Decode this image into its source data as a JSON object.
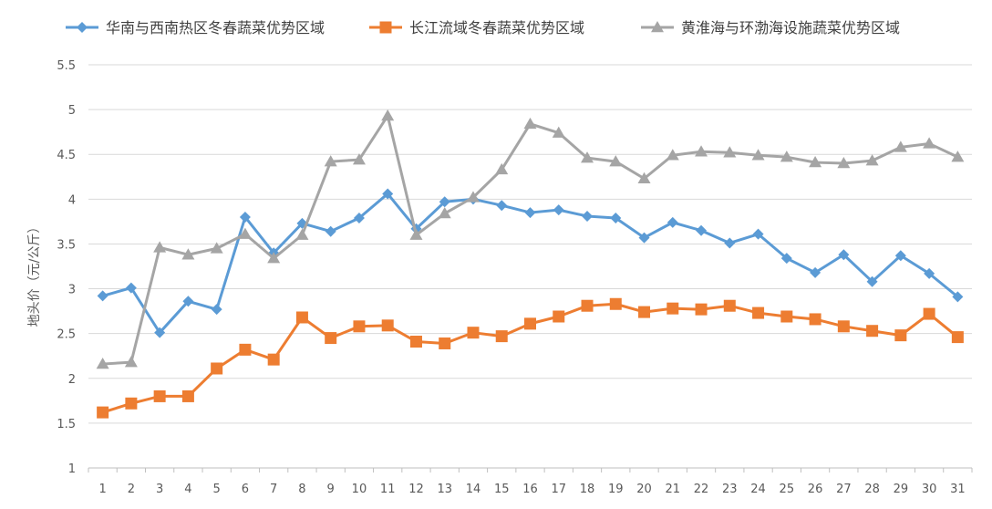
{
  "chart_data": {
    "type": "line",
    "xlabel": "",
    "ylabel": "地头价（元/公斤）",
    "ylim": [
      1,
      5.5
    ],
    "yticks": [
      1,
      1.5,
      2,
      2.5,
      3,
      3.5,
      4,
      4.5,
      5,
      5.5
    ],
    "grid": true,
    "legend": "top",
    "categories": [
      "1",
      "2",
      "3",
      "4",
      "5",
      "6",
      "7",
      "8",
      "9",
      "10",
      "11",
      "12",
      "13",
      "14",
      "15",
      "16",
      "17",
      "18",
      "19",
      "20",
      "21",
      "22",
      "23",
      "24",
      "25",
      "26",
      "27",
      "28",
      "29",
      "30",
      "31"
    ],
    "series": [
      {
        "name": "华南与西南热区冬春蔬菜优势区域",
        "color": "#5b9bd5",
        "marker": "diamond",
        "values": [
          2.92,
          3.01,
          2.51,
          2.86,
          2.77,
          3.8,
          3.4,
          3.73,
          3.64,
          3.79,
          4.06,
          3.67,
          3.97,
          4.0,
          3.93,
          3.85,
          3.88,
          3.81,
          3.79,
          3.57,
          3.74,
          3.65,
          3.51,
          3.61,
          3.34,
          3.18,
          3.38,
          3.08,
          3.37,
          3.17,
          2.91
        ]
      },
      {
        "name": "长江流域冬春蔬菜优势区域",
        "color": "#ed7d31",
        "marker": "square",
        "values": [
          1.62,
          1.72,
          1.8,
          1.8,
          2.11,
          2.32,
          2.21,
          2.68,
          2.45,
          2.58,
          2.59,
          2.41,
          2.39,
          2.51,
          2.47,
          2.61,
          2.69,
          2.81,
          2.83,
          2.74,
          2.78,
          2.77,
          2.81,
          2.73,
          2.69,
          2.66,
          2.58,
          2.53,
          2.48,
          2.72,
          2.46
        ]
      },
      {
        "name": "黄淮海与环渤海设施蔬菜优势区域",
        "color": "#a5a5a5",
        "marker": "triangle",
        "values": [
          2.16,
          2.18,
          3.46,
          3.38,
          3.45,
          3.61,
          3.34,
          3.6,
          4.42,
          4.44,
          4.93,
          3.6,
          3.84,
          4.02,
          4.33,
          4.84,
          4.74,
          4.46,
          4.42,
          4.23,
          4.49,
          4.53,
          4.52,
          4.49,
          4.47,
          4.41,
          4.4,
          4.43,
          4.58,
          4.62,
          4.47
        ]
      }
    ]
  }
}
